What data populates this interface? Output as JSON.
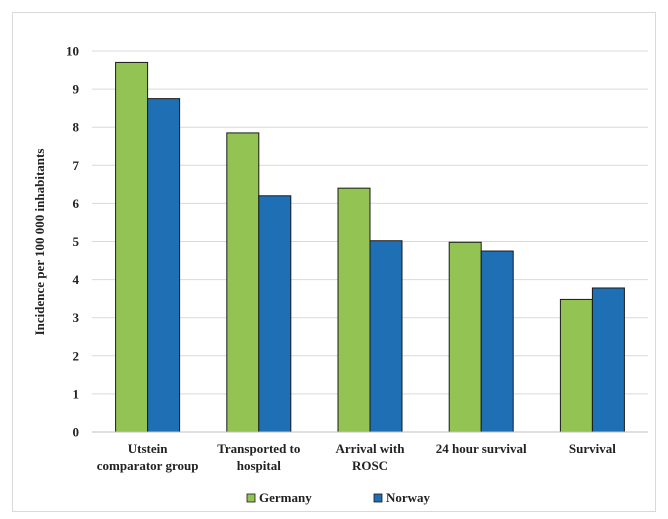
{
  "chart_data": {
    "type": "bar",
    "title": "",
    "xlabel": "",
    "ylabel": "Incidence  per 100 000 inhabitants",
    "ylim": [
      0,
      10
    ],
    "yticks": [
      0,
      1,
      2,
      3,
      4,
      5,
      6,
      7,
      8,
      9,
      10
    ],
    "grid": true,
    "legend_position": "bottom",
    "categories": [
      [
        "Utstein",
        "comparator group"
      ],
      [
        "Transported to",
        "hospital"
      ],
      [
        "Arrival with",
        "ROSC"
      ],
      [
        "24 hour survival"
      ],
      [
        "Survival"
      ]
    ],
    "series": [
      {
        "name": "Germany",
        "color": "#92c353",
        "values": [
          9.7,
          7.85,
          6.4,
          4.98,
          3.48
        ]
      },
      {
        "name": "Norway",
        "color": "#1f6fb5",
        "values": [
          8.75,
          6.2,
          5.02,
          4.75,
          3.78
        ]
      }
    ]
  }
}
